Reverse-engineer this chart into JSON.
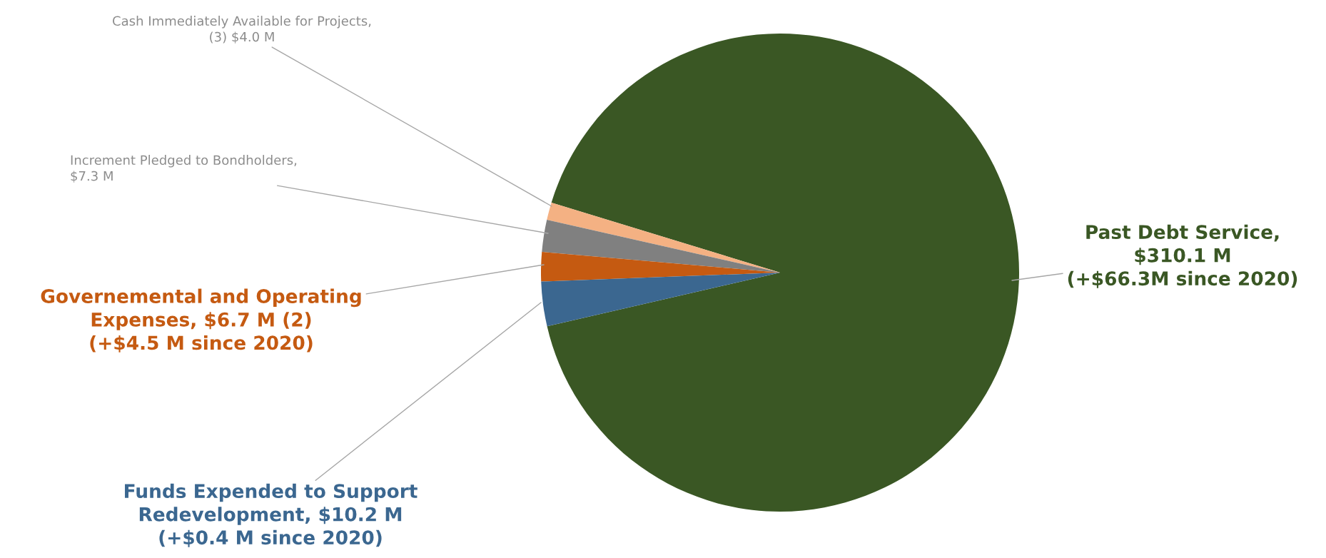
{
  "chart_data": {
    "type": "pie",
    "categories": [
      "Past Debt Service,\n$310.1 M\n(+$66.3M since 2020)",
      "Cash Immediately Available for Projects,\n(3) $4.0 M",
      "Increment Pledged to Bondholders,\n$7.3 M",
      "Governemental and Operating\nExpenses, $6.7 M (2)\n(+$4.5 M since 2020)",
      "Funds Expended to Support\nRedevelopment, $10.2 M\n(+$0.4 M since 2020)"
    ],
    "values": [
      310.1,
      4.0,
      7.3,
      6.7,
      10.2
    ],
    "colors": [
      "#3a5724",
      "#f4b183",
      "#808080",
      "#c55a11",
      "#3b6790"
    ],
    "legend": false
  }
}
